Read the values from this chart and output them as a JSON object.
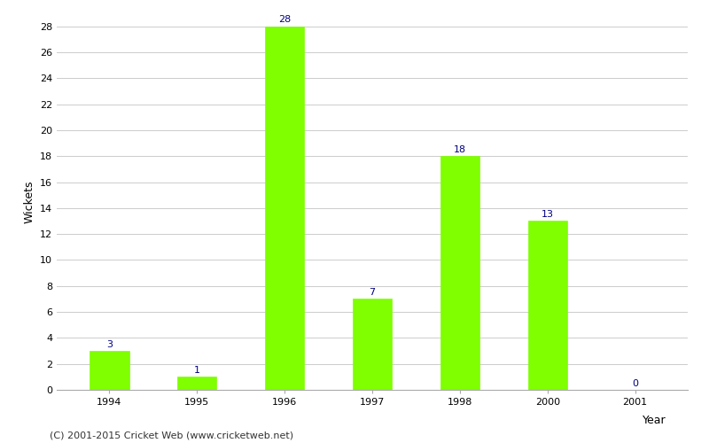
{
  "categories": [
    "1994",
    "1995",
    "1996",
    "1997",
    "1998",
    "2000",
    "2001"
  ],
  "values": [
    3,
    1,
    28,
    7,
    18,
    13,
    0
  ],
  "bar_color": "#7fff00",
  "bar_edge_color": "#7fff00",
  "xlabel": "Year",
  "ylabel": "Wickets",
  "ylim": [
    0,
    29
  ],
  "yticks": [
    0,
    2,
    4,
    6,
    8,
    10,
    12,
    14,
    16,
    18,
    20,
    22,
    24,
    26,
    28
  ],
  "label_color": "#000080",
  "label_fontsize": 8,
  "axis_fontsize": 9,
  "tick_fontsize": 8,
  "footer": "(C) 2001-2015 Cricket Web (www.cricketweb.net)",
  "footer_fontsize": 8,
  "background_color": "#ffffff",
  "grid_color": "#cccccc"
}
